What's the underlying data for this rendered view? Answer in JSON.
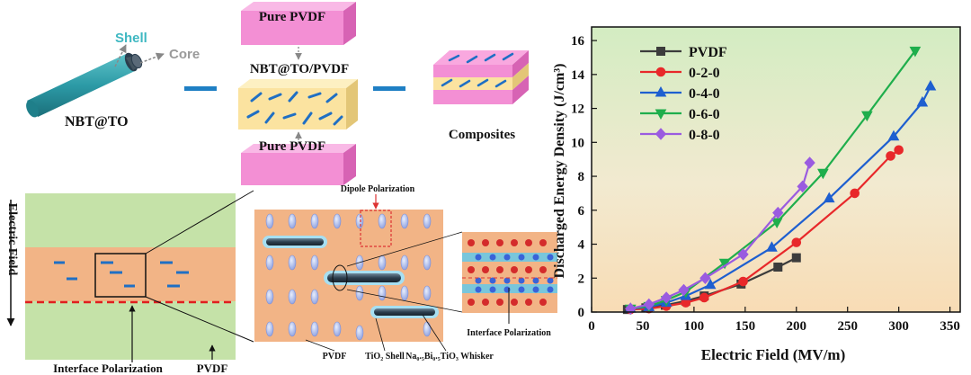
{
  "fabrication": {
    "fiber_label": "NBT@TO",
    "shell_label": "Shell",
    "core_label": "Core",
    "top_layer": "Pure PVDF",
    "middle_label": "NBT@TO/PVDF",
    "bottom_layer": "Pure PVDF",
    "product_label": "Composites"
  },
  "mechanism": {
    "field_label": "Electric Field",
    "interface_label": "Interface Polarization",
    "pvdf_label": "PVDF",
    "dipole_label": "Dipole Polarization",
    "zoom_pvdf": "PVDF",
    "tio2_shell": "TiO₂ Shell",
    "whisker": "Na₀.₅Bi₀.₅TiO₃ Whisker",
    "interface_zoom_label": "Interface Polarization"
  },
  "colors": {
    "pvdf_green": "#c5e2a8",
    "composite_orange": "#f2b486",
    "pink_layer": "#f27fcf",
    "yellow_layer": "#fbe7a1",
    "fiber_teal": "#2c9aa6",
    "fiber_dark": "#2b3e4e"
  },
  "chart_data": {
    "type": "line",
    "xlabel": "Electric Field (MV/m)",
    "ylabel": "Discharged Energy Density (J/cm³)",
    "xlim": [
      0,
      360
    ],
    "ylim": [
      0,
      16.8
    ],
    "xticks": [
      0,
      50,
      100,
      150,
      200,
      250,
      300,
      350
    ],
    "yticks": [
      0,
      2,
      4,
      6,
      8,
      10,
      12,
      14,
      16
    ],
    "legend_position": "top-left",
    "background": "green-to-orange gradient",
    "series": [
      {
        "name": "PVDF",
        "color": "#3c3c3c",
        "marker": "square",
        "x": [
          35,
          53,
          72,
          92,
          110,
          146,
          182,
          200
        ],
        "y": [
          0.15,
          0.25,
          0.4,
          0.65,
          0.95,
          1.65,
          2.65,
          3.2
        ]
      },
      {
        "name": "0-2-0",
        "color": "#e8282a",
        "marker": "circle",
        "x": [
          38,
          56,
          73,
          92,
          110,
          148,
          200,
          257,
          292,
          300
        ],
        "y": [
          0.15,
          0.2,
          0.35,
          0.55,
          0.85,
          1.8,
          4.1,
          7.0,
          9.2,
          9.55
        ]
      },
      {
        "name": "0-4-0",
        "color": "#1e5fd0",
        "marker": "triangle-up",
        "x": [
          38,
          56,
          73,
          92,
          116,
          176,
          232,
          295,
          323,
          331
        ],
        "y": [
          0.2,
          0.3,
          0.55,
          0.95,
          1.6,
          3.8,
          6.7,
          10.35,
          12.35,
          13.3
        ]
      },
      {
        "name": "0-6-0",
        "color": "#1fae4c",
        "marker": "triangle-down",
        "x": [
          38,
          56,
          73,
          92,
          130,
          181,
          226,
          269,
          316
        ],
        "y": [
          0.2,
          0.35,
          0.7,
          1.2,
          2.9,
          5.3,
          8.2,
          11.6,
          15.4
        ]
      },
      {
        "name": "0-8-0",
        "color": "#9a5be0",
        "marker": "diamond",
        "x": [
          38,
          56,
          73,
          90,
          111,
          148,
          182,
          206,
          213
        ],
        "y": [
          0.2,
          0.45,
          0.85,
          1.3,
          2.0,
          3.4,
          5.85,
          7.4,
          8.8
        ]
      }
    ]
  }
}
